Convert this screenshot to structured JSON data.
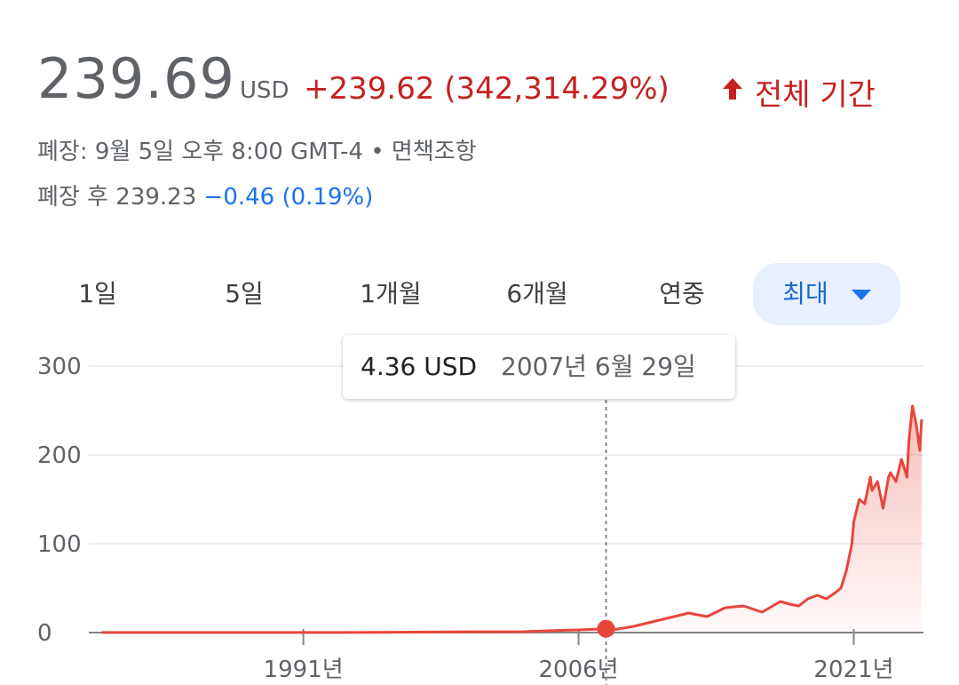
{
  "quote": {
    "price": "239.69",
    "currency": "USD",
    "change": "+239.62 (342,314.29%)",
    "period": "전체 기간",
    "close_label": "폐장: 9월 5일 오후 8:00 GMT-4 • 면책조항",
    "after_hours_label": "폐장 후 239.23 ",
    "after_hours_change": "−0.46 (0.19%)",
    "colors": {
      "negative": "#c5221f",
      "link": "#1a73e8",
      "line": "#e8453c"
    },
    "icon": "arrow-up-icon"
  },
  "range_tabs": [
    {
      "label": "1일"
    },
    {
      "label": "5일"
    },
    {
      "label": "1개월"
    },
    {
      "label": "6개월"
    },
    {
      "label": "연중"
    },
    {
      "label": "최대",
      "active": true,
      "icon": "caret-down-icon"
    }
  ],
  "tooltip": {
    "value": "4.36 USD",
    "date": "2007년 6월 29일"
  },
  "chart_data": {
    "type": "area",
    "title": "",
    "xlabel": "",
    "ylabel": "",
    "ylim": [
      0,
      300
    ],
    "yticks": [
      "0",
      "100",
      "200",
      "300"
    ],
    "xticks": [
      {
        "label": "1991년",
        "year": 1991
      },
      {
        "label": "2006년",
        "year": 2006
      },
      {
        "label": "2021년",
        "year": 2021
      }
    ],
    "xlim": [
      1979.5,
      2024.8
    ],
    "grid": true,
    "series": [
      {
        "x": [
          1980,
          1985,
          1990,
          1995,
          2000,
          2003,
          2005,
          2006,
          2007.5,
          2008,
          2009,
          2010,
          2011,
          2012,
          2013,
          2014,
          2015,
          2016,
          2017,
          2017.5,
          2018,
          2018.5,
          2019,
          2019.5,
          2020,
          2020.3,
          2020.6,
          2020.9,
          2021,
          2021.3,
          2021.6,
          2021.9,
          2022,
          2022.3,
          2022.6,
          2022.9,
          2023,
          2023.3,
          2023.6,
          2023.9,
          2024,
          2024.2,
          2024.4,
          2024.6,
          2024.7
        ],
        "y": [
          0.07,
          0.1,
          0.15,
          0.2,
          0.9,
          1.0,
          2.5,
          3.0,
          4.36,
          3.5,
          7,
          12,
          17,
          22,
          18,
          28,
          30,
          23,
          35,
          32,
          30,
          38,
          42,
          38,
          45,
          50,
          70,
          100,
          125,
          150,
          145,
          175,
          160,
          170,
          140,
          175,
          180,
          170,
          195,
          175,
          215,
          255,
          235,
          205,
          240
        ]
      }
    ],
    "highlight": {
      "x": 2007.5,
      "y": 4.36
    }
  }
}
